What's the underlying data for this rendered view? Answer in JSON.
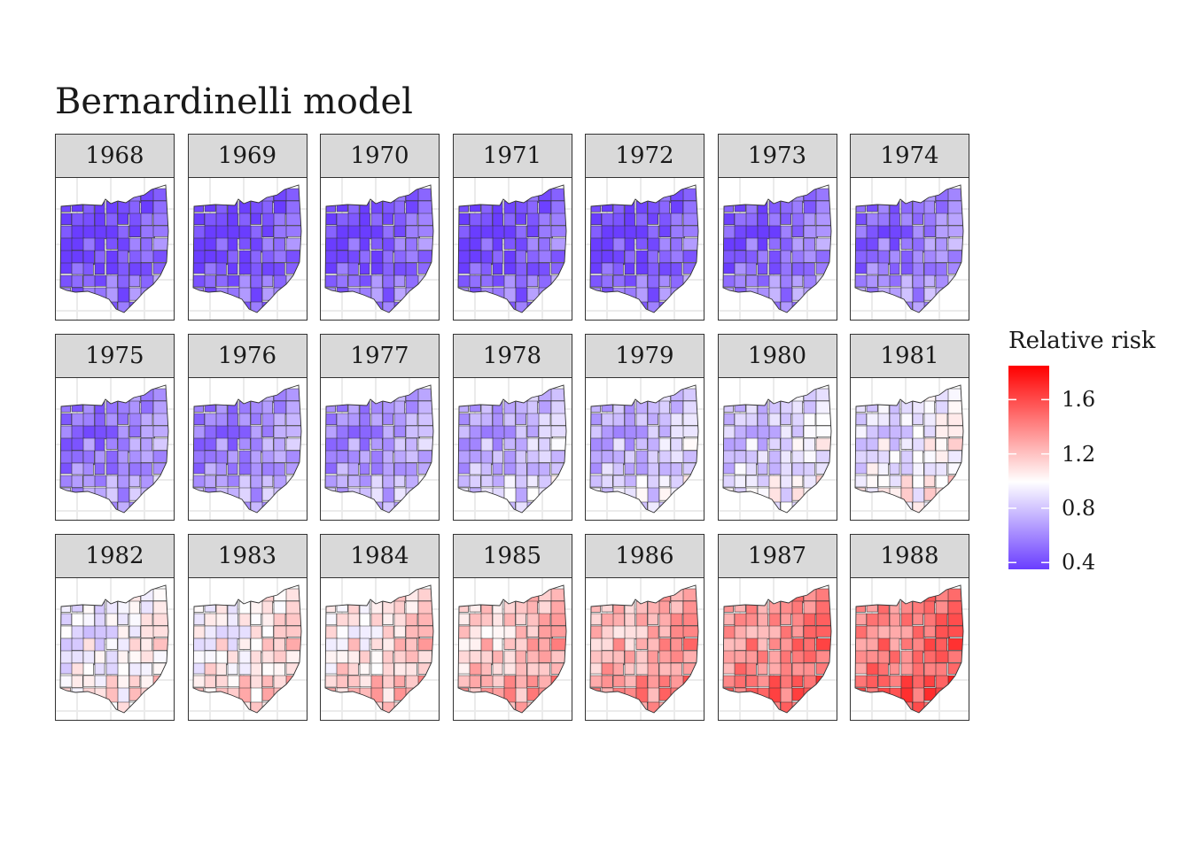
{
  "title": "Bernardinelli model",
  "panels": [
    {
      "label": "1968",
      "level": 0.05
    },
    {
      "label": "1969",
      "level": 0.05
    },
    {
      "label": "1970",
      "level": 0.07
    },
    {
      "label": "1971",
      "level": 0.06
    },
    {
      "label": "1972",
      "level": 0.06
    },
    {
      "label": "1973",
      "level": 0.11
    },
    {
      "label": "1974",
      "level": 0.14
    },
    {
      "label": "1975",
      "level": 0.16
    },
    {
      "label": "1976",
      "level": 0.18
    },
    {
      "label": "1977",
      "level": 0.21
    },
    {
      "label": "1978",
      "level": 0.27
    },
    {
      "label": "1979",
      "level": 0.29
    },
    {
      "label": "1980",
      "level": 0.34
    },
    {
      "label": "1981",
      "level": 0.39
    },
    {
      "label": "1982",
      "level": 0.42
    },
    {
      "label": "1983",
      "level": 0.47
    },
    {
      "label": "1984",
      "level": 0.51
    },
    {
      "label": "1985",
      "level": 0.57
    },
    {
      "label": "1986",
      "level": 0.62
    },
    {
      "label": "1987",
      "level": 0.7
    },
    {
      "label": "1988",
      "level": 0.74
    }
  ],
  "legend": {
    "title": "Relative risk",
    "ticks": [
      "1.6",
      "1.2",
      "0.8",
      "0.4"
    ],
    "tick_values": [
      1.6,
      1.2,
      0.8,
      0.4
    ],
    "range": [
      0.35,
      1.85
    ],
    "midpoint": 1.0,
    "colors": {
      "low": "#6a3dff",
      "mid": "#ffffff",
      "high": "#ff0000"
    }
  }
}
